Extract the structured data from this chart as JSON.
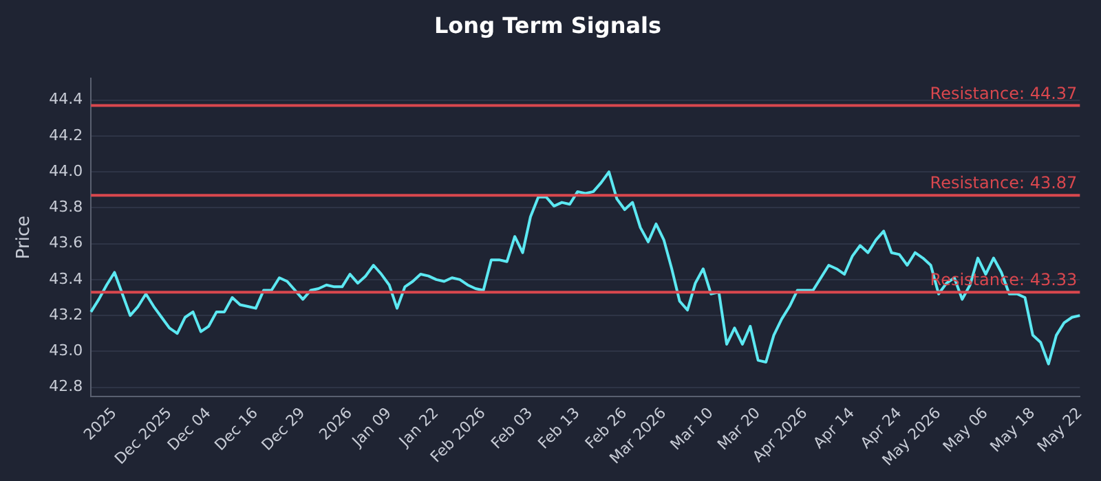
{
  "chart_data": {
    "type": "line",
    "title": "Long Term Signals",
    "ylabel": "Price",
    "categories": [
      null,
      null,
      null,
      "2025",
      null,
      null,
      null,
      null,
      null,
      null,
      "Dec 2025",
      null,
      null,
      null,
      null,
      "Dec 04",
      null,
      null,
      null,
      null,
      null,
      "Dec 16",
      null,
      null,
      null,
      null,
      null,
      "Dec 29",
      null,
      null,
      null,
      null,
      null,
      "2026",
      null,
      null,
      null,
      null,
      "Jan 09",
      null,
      null,
      null,
      null,
      null,
      "Jan 22",
      null,
      null,
      null,
      null,
      null,
      "Feb 2026",
      null,
      null,
      null,
      null,
      null,
      "Feb 03",
      null,
      null,
      null,
      null,
      null,
      "Feb 13",
      null,
      null,
      null,
      null,
      null,
      "Feb 26",
      null,
      null,
      null,
      null,
      "Mar 2026",
      null,
      null,
      null,
      null,
      null,
      "Mar 10",
      null,
      null,
      null,
      null,
      null,
      "Mar 20",
      null,
      null,
      null,
      null,
      null,
      "Apr 2026",
      null,
      null,
      null,
      null,
      null,
      "Apr 14",
      null,
      null,
      null,
      null,
      null,
      "Apr 24",
      null,
      null,
      null,
      null,
      "May 2026",
      null,
      null,
      null,
      null,
      null,
      "May 06",
      null,
      null,
      null,
      null,
      null,
      "May 18",
      null,
      null,
      null,
      null,
      null,
      "May 22"
    ],
    "series": [
      {
        "color": "#5ce8f2",
        "values": [
          43.22,
          43.29,
          43.37,
          43.44,
          43.32,
          43.2,
          43.25,
          43.32,
          43.25,
          43.19,
          43.13,
          43.1,
          43.19,
          43.22,
          43.11,
          43.14,
          43.22,
          43.22,
          43.3,
          43.26,
          43.25,
          43.24,
          43.34,
          43.34,
          43.41,
          43.39,
          43.34,
          43.29,
          43.34,
          43.35,
          43.37,
          43.36,
          43.36,
          43.43,
          43.38,
          43.42,
          43.48,
          43.43,
          43.37,
          43.24,
          43.36,
          43.39,
          43.43,
          43.42,
          43.4,
          43.39,
          43.41,
          43.4,
          43.37,
          43.35,
          43.34,
          43.51,
          43.51,
          43.5,
          43.64,
          43.55,
          43.75,
          43.86,
          43.86,
          43.81,
          43.83,
          43.82,
          43.89,
          43.88,
          43.89,
          43.94,
          44.0,
          43.85,
          43.79,
          43.83,
          43.69,
          43.61,
          43.71,
          43.62,
          43.46,
          43.28,
          43.23,
          43.38,
          43.46,
          43.32,
          43.33,
          43.04,
          43.13,
          43.04,
          43.14,
          42.95,
          42.94,
          43.09,
          43.18,
          43.25,
          43.34,
          43.34,
          43.34,
          43.41,
          43.48,
          43.46,
          43.43,
          43.53,
          43.59,
          43.55,
          43.62,
          43.67,
          43.55,
          43.54,
          43.48,
          43.55,
          43.52,
          43.48,
          43.32,
          43.38,
          43.41,
          43.29,
          43.37,
          43.52,
          43.43,
          43.52,
          43.44,
          43.32,
          43.32,
          43.3,
          43.09,
          43.05,
          42.93,
          43.09,
          43.16,
          43.19,
          43.2
        ]
      }
    ],
    "ylim": [
      42.75,
      44.52
    ],
    "yticks": [
      {
        "value": 42.8,
        "label": "42.8"
      },
      {
        "value": 43.0,
        "label": "43.0"
      },
      {
        "value": 43.2,
        "label": "43.2"
      },
      {
        "value": 43.4,
        "label": "43.4"
      },
      {
        "value": 43.6,
        "label": "43.6"
      },
      {
        "value": 43.8,
        "label": "43.8"
      },
      {
        "value": 44.0,
        "label": "44.0"
      },
      {
        "value": 44.2,
        "label": "44.2"
      },
      {
        "value": 44.4,
        "label": "44.4"
      }
    ],
    "ref_lines": [
      {
        "axis": "y",
        "value": 44.37,
        "label": "Resistance: 44.37",
        "color": "#d9474e"
      },
      {
        "axis": "y",
        "value": 43.87,
        "label": "Resistance: 43.87",
        "color": "#d9474e"
      },
      {
        "axis": "y",
        "value": 43.33,
        "label": "Resistance: 43.33",
        "color": "#d9474e"
      }
    ],
    "grid": "y",
    "legend": false,
    "marker": "none",
    "line_style": "solid"
  }
}
